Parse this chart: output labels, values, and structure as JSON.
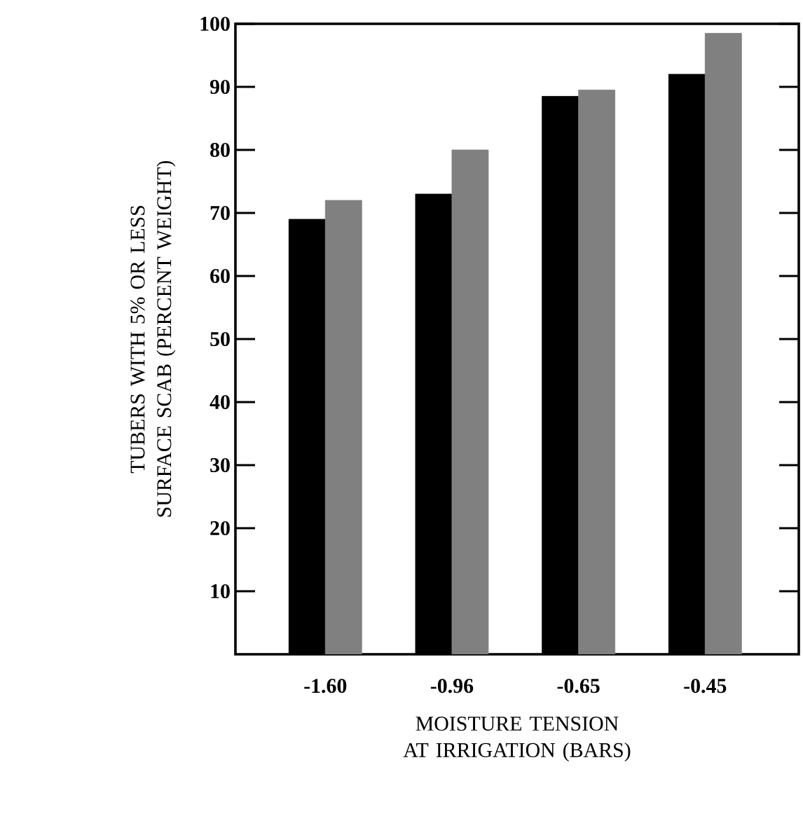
{
  "chart_data": {
    "type": "bar",
    "xlabel": "MOISTURE TENSION AT IRRIGATION (BARS)",
    "ylabel": "TUBERS WITH 5% OR LESS SURFACE SCAB (PERCENT WEIGHT)",
    "categories": [
      "-1.60",
      "-0.96",
      "-0.65",
      "-0.45"
    ],
    "series": [
      {
        "color": "#000000",
        "values": [
          69,
          73,
          88.5,
          92
        ]
      },
      {
        "color": "#808080",
        "values": [
          72,
          80,
          89.5,
          98.5
        ]
      }
    ],
    "ylim": [
      0,
      100
    ],
    "yticks": [
      10,
      20,
      30,
      40,
      50,
      60,
      70,
      80,
      90,
      100
    ]
  }
}
